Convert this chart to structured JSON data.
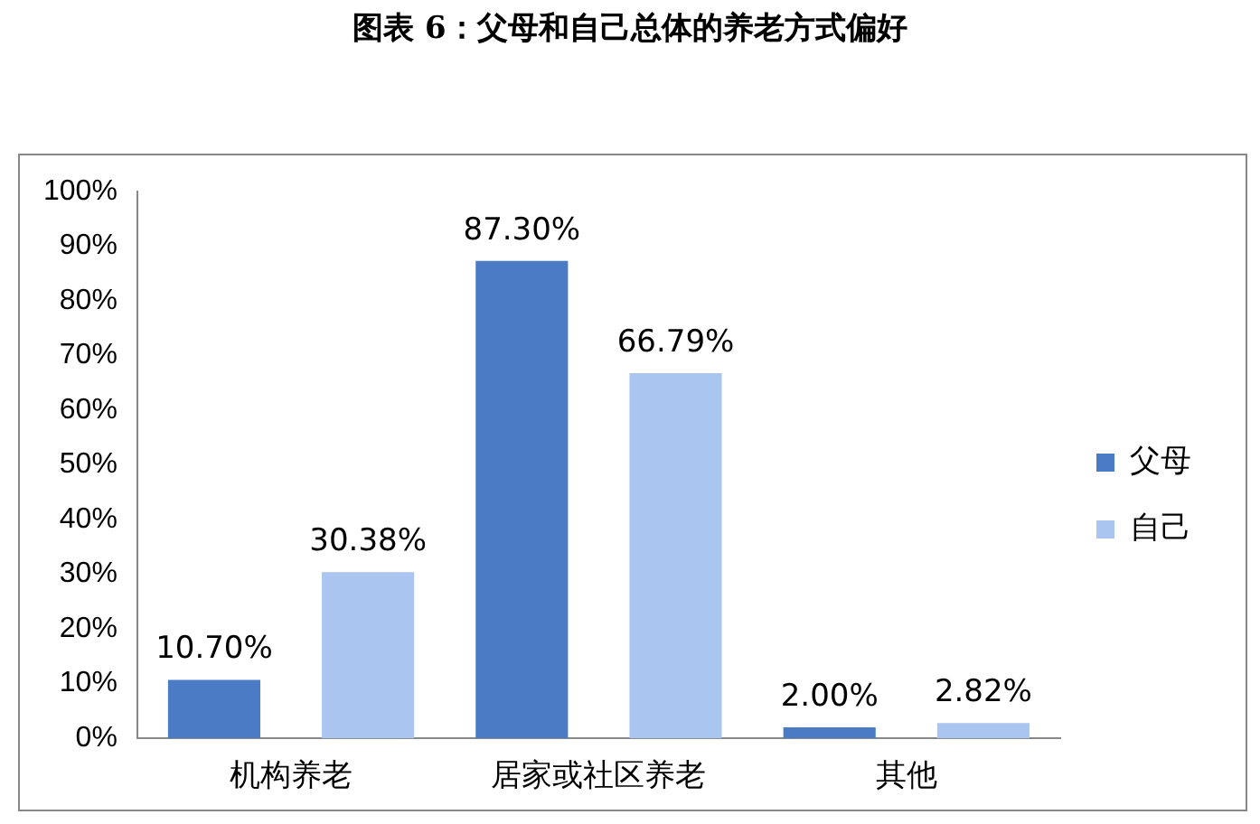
{
  "chart_data": {
    "type": "bar",
    "title": "图表 6：父母和自己总体的养老方式偏好",
    "categories": [
      "机构养老",
      "居家或社区养老",
      "其他"
    ],
    "series": [
      {
        "name": "父母",
        "color": "#4a7bc4",
        "values": [
          10.7,
          87.3,
          2.0
        ],
        "value_labels": [
          "10.70%",
          "87.30%",
          "2.00%"
        ]
      },
      {
        "name": "自己",
        "color": "#a9c5f0",
        "values": [
          30.38,
          66.79,
          2.82
        ],
        "value_labels": [
          "30.38%",
          "66.79%",
          "2.82%"
        ]
      }
    ],
    "ylim": [
      0,
      100
    ],
    "yticks": [
      {
        "value": 0,
        "label": "0%"
      },
      {
        "value": 10,
        "label": "10%"
      },
      {
        "value": 20,
        "label": "20%"
      },
      {
        "value": 30,
        "label": "30%"
      },
      {
        "value": 40,
        "label": "40%"
      },
      {
        "value": 50,
        "label": "50%"
      },
      {
        "value": 60,
        "label": "60%"
      },
      {
        "value": 70,
        "label": "70%"
      },
      {
        "value": 80,
        "label": "80%"
      },
      {
        "value": 90,
        "label": "90%"
      },
      {
        "value": 100,
        "label": "100%"
      }
    ],
    "grid": false,
    "legend": "right"
  }
}
